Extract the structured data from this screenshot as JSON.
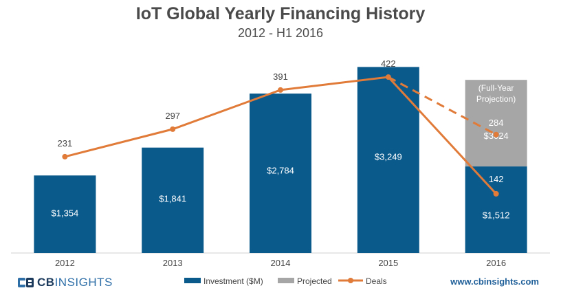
{
  "chart_data": {
    "type": "bar",
    "title": "IoT Global Yearly Financing History",
    "subtitle": "2012 - H1 2016",
    "categories": [
      "2012",
      "2013",
      "2014",
      "2015",
      "2016"
    ],
    "series": [
      {
        "name": "Investment ($M)",
        "type": "bar",
        "color": "#0b5a8c",
        "values": [
          1354,
          1841,
          2784,
          3249,
          1512
        ],
        "labels": [
          "$1,354",
          "$1,841",
          "$2,784",
          "$3,249",
          "$1,512"
        ]
      },
      {
        "name": "Projected",
        "type": "bar-stacked",
        "color": "#a6a6a6",
        "values": [
          null,
          null,
          null,
          null,
          1512
        ],
        "labels": [
          "",
          "",
          "",
          "",
          "$3024"
        ],
        "note": "(Full-Year Projection)"
      },
      {
        "name": "Deals",
        "type": "line",
        "color": "#e07b39",
        "values": [
          231,
          297,
          391,
          422,
          142
        ],
        "projected_value": 284,
        "labels": [
          "231",
          "297",
          "391",
          "422",
          "142"
        ],
        "projected_label": "284"
      }
    ],
    "bar_ylim": [
      0,
      3500
    ],
    "line_ylim": [
      0,
      450
    ],
    "legend_position": "bottom-center"
  },
  "footer": {
    "logo_bold": "CB",
    "logo_light": "INSIGHTS",
    "website": "www.cbinsights.com"
  }
}
